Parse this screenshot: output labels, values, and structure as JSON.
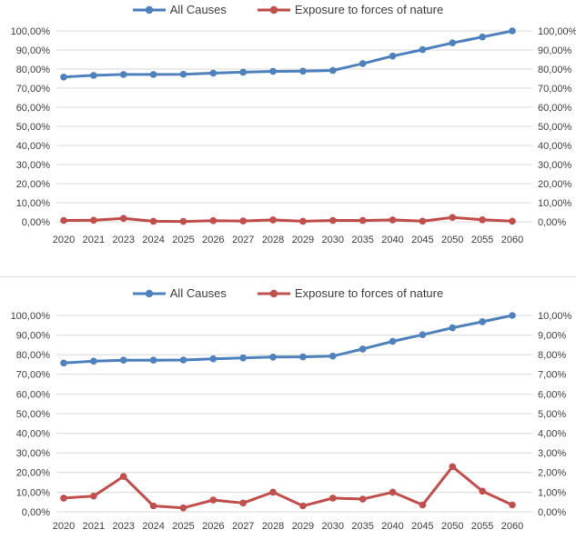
{
  "colors": {
    "all_causes": "#4F81BD",
    "exposure": "#C0504D",
    "gridline": "#D9D9D9",
    "axis_text": "#404040",
    "divider": "#D9D9D9",
    "background": "#FFFFFF"
  },
  "chart_data": [
    {
      "type": "line",
      "title": "",
      "categories": [
        "2020",
        "2021",
        "2023",
        "2024",
        "2025",
        "2026",
        "2027",
        "2028",
        "2029",
        "2030",
        "2035",
        "2040",
        "2045",
        "2050",
        "2055",
        "2060"
      ],
      "series": [
        {
          "name": "All Causes",
          "color": "#4F81BD",
          "axis": "left",
          "values": [
            75.8,
            76.7,
            77.2,
            77.2,
            77.3,
            77.9,
            78.4,
            78.8,
            78.9,
            79.3,
            82.9,
            86.8,
            90.2,
            93.7,
            96.8,
            100.0
          ]
        },
        {
          "name": "Exposure to forces of nature",
          "color": "#C0504D",
          "axis": "right",
          "values": [
            0.7,
            0.8,
            1.8,
            0.3,
            0.2,
            0.6,
            0.45,
            1.0,
            0.3,
            0.7,
            0.65,
            1.0,
            0.35,
            2.3,
            1.05,
            0.35
          ]
        }
      ],
      "left_axis": {
        "label": "",
        "min": 0,
        "max": 100,
        "step": 10,
        "ticks": [
          "0,00%",
          "10,00%",
          "20,00%",
          "30,00%",
          "40,00%",
          "50,00%",
          "60,00%",
          "70,00%",
          "80,00%",
          "90,00%",
          "100,00%"
        ]
      },
      "right_axis": {
        "label": "",
        "min": 0,
        "max": 100,
        "step": 10,
        "ticks": [
          "0,00%",
          "10,00%",
          "20,00%",
          "30,00%",
          "40,00%",
          "50,00%",
          "60,00%",
          "70,00%",
          "80,00%",
          "90,00%",
          "100,00%"
        ]
      },
      "grid": true,
      "legend_position": "top"
    },
    {
      "type": "line",
      "title": "",
      "categories": [
        "2020",
        "2021",
        "2023",
        "2024",
        "2025",
        "2026",
        "2027",
        "2028",
        "2029",
        "2030",
        "2035",
        "2040",
        "2045",
        "2050",
        "2055",
        "2060"
      ],
      "series": [
        {
          "name": "All Causes",
          "color": "#4F81BD",
          "axis": "left",
          "values": [
            75.8,
            76.7,
            77.2,
            77.2,
            77.3,
            77.9,
            78.4,
            78.8,
            78.9,
            79.3,
            82.9,
            86.8,
            90.2,
            93.7,
            96.8,
            100.0
          ]
        },
        {
          "name": "Exposure to forces of nature",
          "color": "#C0504D",
          "axis": "right",
          "values": [
            0.7,
            0.8,
            1.8,
            0.3,
            0.2,
            0.6,
            0.45,
            1.0,
            0.3,
            0.7,
            0.65,
            1.0,
            0.35,
            2.3,
            1.05,
            0.35
          ]
        }
      ],
      "left_axis": {
        "label": "",
        "min": 0,
        "max": 100,
        "step": 10,
        "ticks": [
          "0,00%",
          "10,00%",
          "20,00%",
          "30,00%",
          "40,00%",
          "50,00%",
          "60,00%",
          "70,00%",
          "80,00%",
          "90,00%",
          "100,00%"
        ]
      },
      "right_axis": {
        "label": "",
        "min": 0,
        "max": 10,
        "step": 1,
        "ticks": [
          "0,00%",
          "1,00%",
          "2,00%",
          "3,00%",
          "4,00%",
          "5,00%",
          "6,00%",
          "7,00%",
          "8,00%",
          "9,00%",
          "10,00%"
        ]
      },
      "grid": true,
      "legend_position": "top"
    }
  ]
}
